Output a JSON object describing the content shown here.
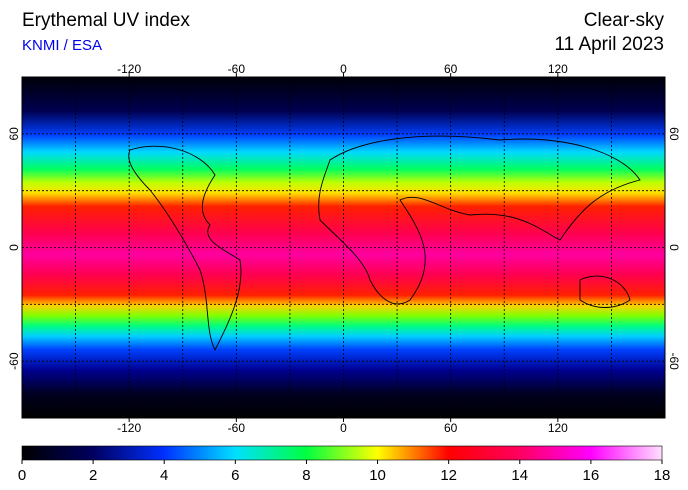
{
  "header": {
    "title": "Erythemal UV index",
    "source": "KNMI / ESA",
    "condition": "Clear-sky",
    "date": "11 April 2023"
  },
  "map": {
    "lon_range": [
      -180,
      180
    ],
    "lat_range": [
      -90,
      90
    ],
    "lon_ticks": [
      -120,
      -60,
      0,
      60,
      120
    ],
    "lat_ticks": [
      60,
      0,
      -60
    ],
    "grid_lon": [
      -150,
      -120,
      -90,
      -60,
      -30,
      0,
      30,
      60,
      90,
      120,
      150
    ],
    "grid_lat": [
      -60,
      -30,
      0,
      30,
      60
    ]
  },
  "colorbar": {
    "range": [
      0,
      18
    ],
    "ticks": [
      0,
      2,
      4,
      6,
      8,
      10,
      12,
      14,
      16,
      18
    ],
    "colors": [
      "#000000",
      "#000060",
      "#0030ff",
      "#00e0ff",
      "#00ff40",
      "#ffff00",
      "#ff0000",
      "#ff0060",
      "#ff00ff",
      "#ffe0ff"
    ]
  }
}
